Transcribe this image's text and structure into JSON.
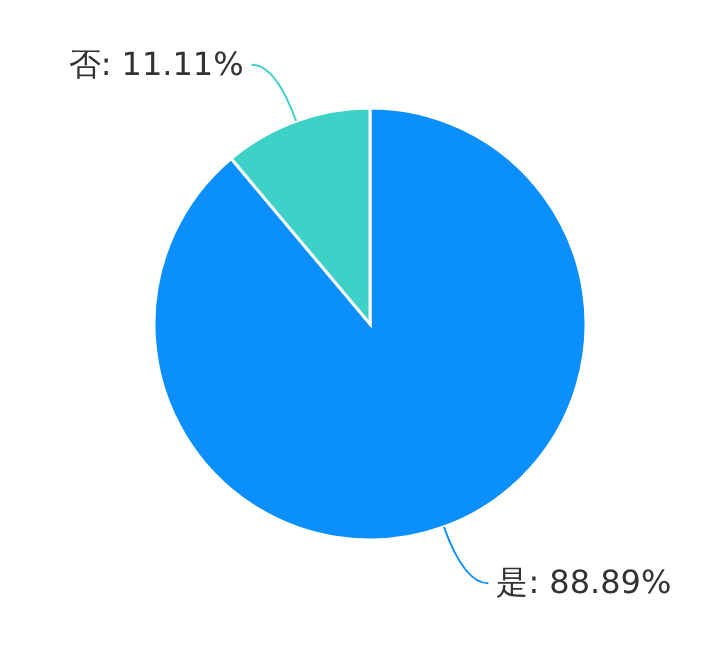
{
  "chart_data": {
    "type": "pie",
    "categories": [
      "是",
      "否"
    ],
    "values": [
      88.89,
      11.11
    ],
    "colors": [
      "#0b8ffc",
      "#3dd1c8"
    ],
    "value_labels": [
      "88.89%",
      "11.11%"
    ]
  }
}
